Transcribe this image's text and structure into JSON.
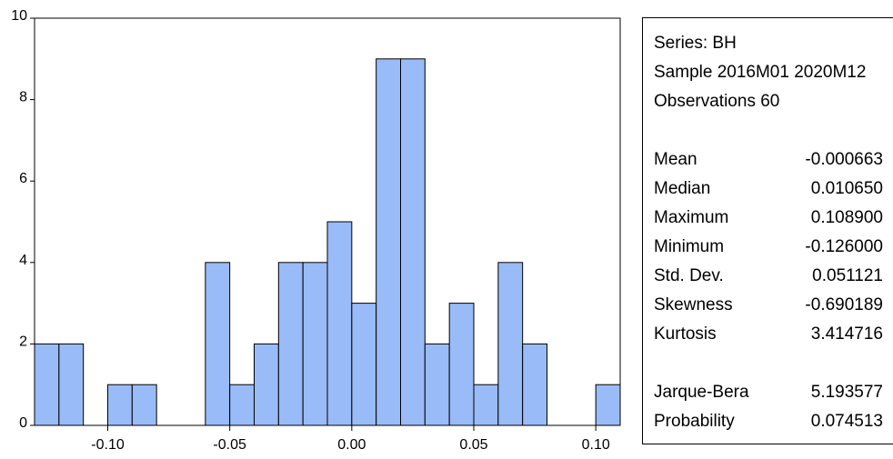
{
  "chart_data": {
    "type": "bar",
    "bins": [
      {
        "from": -0.13,
        "to": -0.12,
        "count": 2
      },
      {
        "from": -0.12,
        "to": -0.11,
        "count": 2
      },
      {
        "from": -0.11,
        "to": -0.1,
        "count": 0
      },
      {
        "from": -0.1,
        "to": -0.09,
        "count": 1
      },
      {
        "from": -0.09,
        "to": -0.08,
        "count": 1
      },
      {
        "from": -0.08,
        "to": -0.07,
        "count": 0
      },
      {
        "from": -0.07,
        "to": -0.06,
        "count": 0
      },
      {
        "from": -0.06,
        "to": -0.05,
        "count": 4
      },
      {
        "from": -0.05,
        "to": -0.04,
        "count": 1
      },
      {
        "from": -0.04,
        "to": -0.03,
        "count": 2
      },
      {
        "from": -0.03,
        "to": -0.02,
        "count": 4
      },
      {
        "from": -0.02,
        "to": -0.01,
        "count": 4
      },
      {
        "from": -0.01,
        "to": 0.0,
        "count": 5
      },
      {
        "from": 0.0,
        "to": 0.01,
        "count": 3
      },
      {
        "from": 0.01,
        "to": 0.02,
        "count": 9
      },
      {
        "from": 0.02,
        "to": 0.03,
        "count": 9
      },
      {
        "from": 0.03,
        "to": 0.04,
        "count": 2
      },
      {
        "from": 0.04,
        "to": 0.05,
        "count": 3
      },
      {
        "from": 0.05,
        "to": 0.06,
        "count": 1
      },
      {
        "from": 0.06,
        "to": 0.07,
        "count": 4
      },
      {
        "from": 0.07,
        "to": 0.08,
        "count": 2
      },
      {
        "from": 0.08,
        "to": 0.09,
        "count": 0
      },
      {
        "from": 0.09,
        "to": 0.1,
        "count": 0
      },
      {
        "from": 0.1,
        "to": 0.11,
        "count": 1
      }
    ],
    "xlim": [
      -0.13,
      0.11
    ],
    "ylim": [
      0,
      10
    ],
    "xticks": [
      {
        "value": -0.1,
        "label": "-0.10"
      },
      {
        "value": -0.05,
        "label": "-0.05"
      },
      {
        "value": 0.0,
        "label": "0.00"
      },
      {
        "value": 0.05,
        "label": "0.05"
      },
      {
        "value": 0.1,
        "label": "0.10"
      }
    ],
    "yticks": [
      {
        "value": 0,
        "label": "0"
      },
      {
        "value": 2,
        "label": "2"
      },
      {
        "value": 4,
        "label": "4"
      },
      {
        "value": 6,
        "label": "6"
      },
      {
        "value": 8,
        "label": "8"
      },
      {
        "value": 10,
        "label": "10"
      }
    ],
    "bar_color": "#99bbf7",
    "edge_color": "#000000",
    "grid": false
  },
  "stats": {
    "series": "Series: BH",
    "sample": "Sample 2016M01 2020M12",
    "observations": "Observations 60",
    "rows": [
      {
        "label": "Mean",
        "value": "-0.000663"
      },
      {
        "label": "Median",
        "value": "0.010650"
      },
      {
        "label": "Maximum",
        "value": "0.108900"
      },
      {
        "label": "Minimum",
        "value": "-0.126000"
      },
      {
        "label": "Std. Dev.",
        "value": "0.051121"
      },
      {
        "label": "Skewness",
        "value": "-0.690189"
      },
      {
        "label": "Kurtosis",
        "value": "3.414716"
      }
    ],
    "test_rows": [
      {
        "label": "Jarque-Bera",
        "value": "5.193577"
      },
      {
        "label": "Probability",
        "value": "0.074513"
      }
    ]
  }
}
